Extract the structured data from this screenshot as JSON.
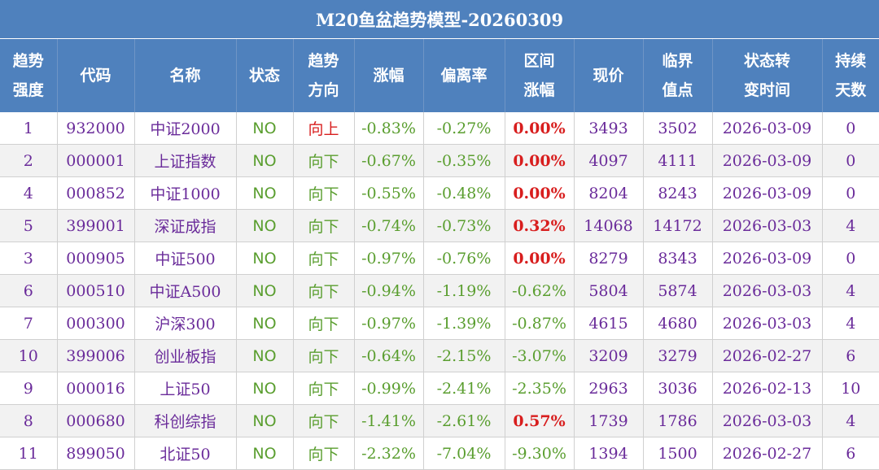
{
  "title": "M20鱼盆趋势模型-20260309",
  "headers": [
    [
      "趋势",
      "强度"
    ],
    [
      "代码"
    ],
    [
      "名称"
    ],
    [
      "状态"
    ],
    [
      "趋势",
      "方向"
    ],
    [
      "涨幅"
    ],
    [
      "偏离率"
    ],
    [
      "区间",
      "涨幅"
    ],
    [
      "现价"
    ],
    [
      "临界",
      "值点"
    ],
    [
      "状态转",
      "变时间"
    ],
    [
      "持续",
      "天数"
    ]
  ],
  "rows": [
    {
      "rank": "1",
      "code": "932000",
      "name": "中证2000",
      "status": "NO",
      "direction": "向上",
      "direction_color": "red",
      "change": "-0.83%",
      "deviation": "-0.27%",
      "interval": "0.00%",
      "interval_color": "red",
      "price": "3493",
      "critical": "3502",
      "switch_time": "2026-03-09",
      "days": "0"
    },
    {
      "rank": "2",
      "code": "000001",
      "name": "上证指数",
      "status": "NO",
      "direction": "向下",
      "direction_color": "green",
      "change": "-0.67%",
      "deviation": "-0.35%",
      "interval": "0.00%",
      "interval_color": "red",
      "price": "4097",
      "critical": "4111",
      "switch_time": "2026-03-09",
      "days": "0"
    },
    {
      "rank": "4",
      "code": "000852",
      "name": "中证1000",
      "status": "NO",
      "direction": "向下",
      "direction_color": "green",
      "change": "-0.55%",
      "deviation": "-0.48%",
      "interval": "0.00%",
      "interval_color": "red",
      "price": "8204",
      "critical": "8243",
      "switch_time": "2026-03-09",
      "days": "0"
    },
    {
      "rank": "5",
      "code": "399001",
      "name": "深证成指",
      "status": "NO",
      "direction": "向下",
      "direction_color": "green",
      "change": "-0.74%",
      "deviation": "-0.73%",
      "interval": "0.32%",
      "interval_color": "red",
      "price": "14068",
      "critical": "14172",
      "switch_time": "2026-03-03",
      "days": "4"
    },
    {
      "rank": "3",
      "code": "000905",
      "name": "中证500",
      "status": "NO",
      "direction": "向下",
      "direction_color": "green",
      "change": "-0.97%",
      "deviation": "-0.76%",
      "interval": "0.00%",
      "interval_color": "red",
      "price": "8279",
      "critical": "8343",
      "switch_time": "2026-03-09",
      "days": "0"
    },
    {
      "rank": "6",
      "code": "000510",
      "name": "中证A500",
      "status": "NO",
      "direction": "向下",
      "direction_color": "green",
      "change": "-0.94%",
      "deviation": "-1.19%",
      "interval": "-0.62%",
      "interval_color": "green",
      "price": "5804",
      "critical": "5874",
      "switch_time": "2026-03-03",
      "days": "4"
    },
    {
      "rank": "7",
      "code": "000300",
      "name": "沪深300",
      "status": "NO",
      "direction": "向下",
      "direction_color": "green",
      "change": "-0.97%",
      "deviation": "-1.39%",
      "interval": "-0.87%",
      "interval_color": "green",
      "price": "4615",
      "critical": "4680",
      "switch_time": "2026-03-03",
      "days": "4"
    },
    {
      "rank": "10",
      "code": "399006",
      "name": "创业板指",
      "status": "NO",
      "direction": "向下",
      "direction_color": "green",
      "change": "-0.64%",
      "deviation": "-2.15%",
      "interval": "-3.07%",
      "interval_color": "green",
      "price": "3209",
      "critical": "3279",
      "switch_time": "2026-02-27",
      "days": "6"
    },
    {
      "rank": "9",
      "code": "000016",
      "name": "上证50",
      "status": "NO",
      "direction": "向下",
      "direction_color": "green",
      "change": "-0.99%",
      "deviation": "-2.41%",
      "interval": "-2.35%",
      "interval_color": "green",
      "price": "2963",
      "critical": "3036",
      "switch_time": "2026-02-13",
      "days": "10"
    },
    {
      "rank": "8",
      "code": "000680",
      "name": "科创综指",
      "status": "NO",
      "direction": "向下",
      "direction_color": "green",
      "change": "-1.41%",
      "deviation": "-2.61%",
      "interval": "0.57%",
      "interval_color": "red",
      "price": "1739",
      "critical": "1786",
      "switch_time": "2026-03-03",
      "days": "4"
    },
    {
      "rank": "11",
      "code": "899050",
      "name": "北证50",
      "status": "NO",
      "direction": "向下",
      "direction_color": "green",
      "change": "-2.32%",
      "deviation": "-7.04%",
      "interval": "-9.30%",
      "interval_color": "green",
      "price": "1394",
      "critical": "1500",
      "switch_time": "2026-02-27",
      "days": "6"
    }
  ]
}
